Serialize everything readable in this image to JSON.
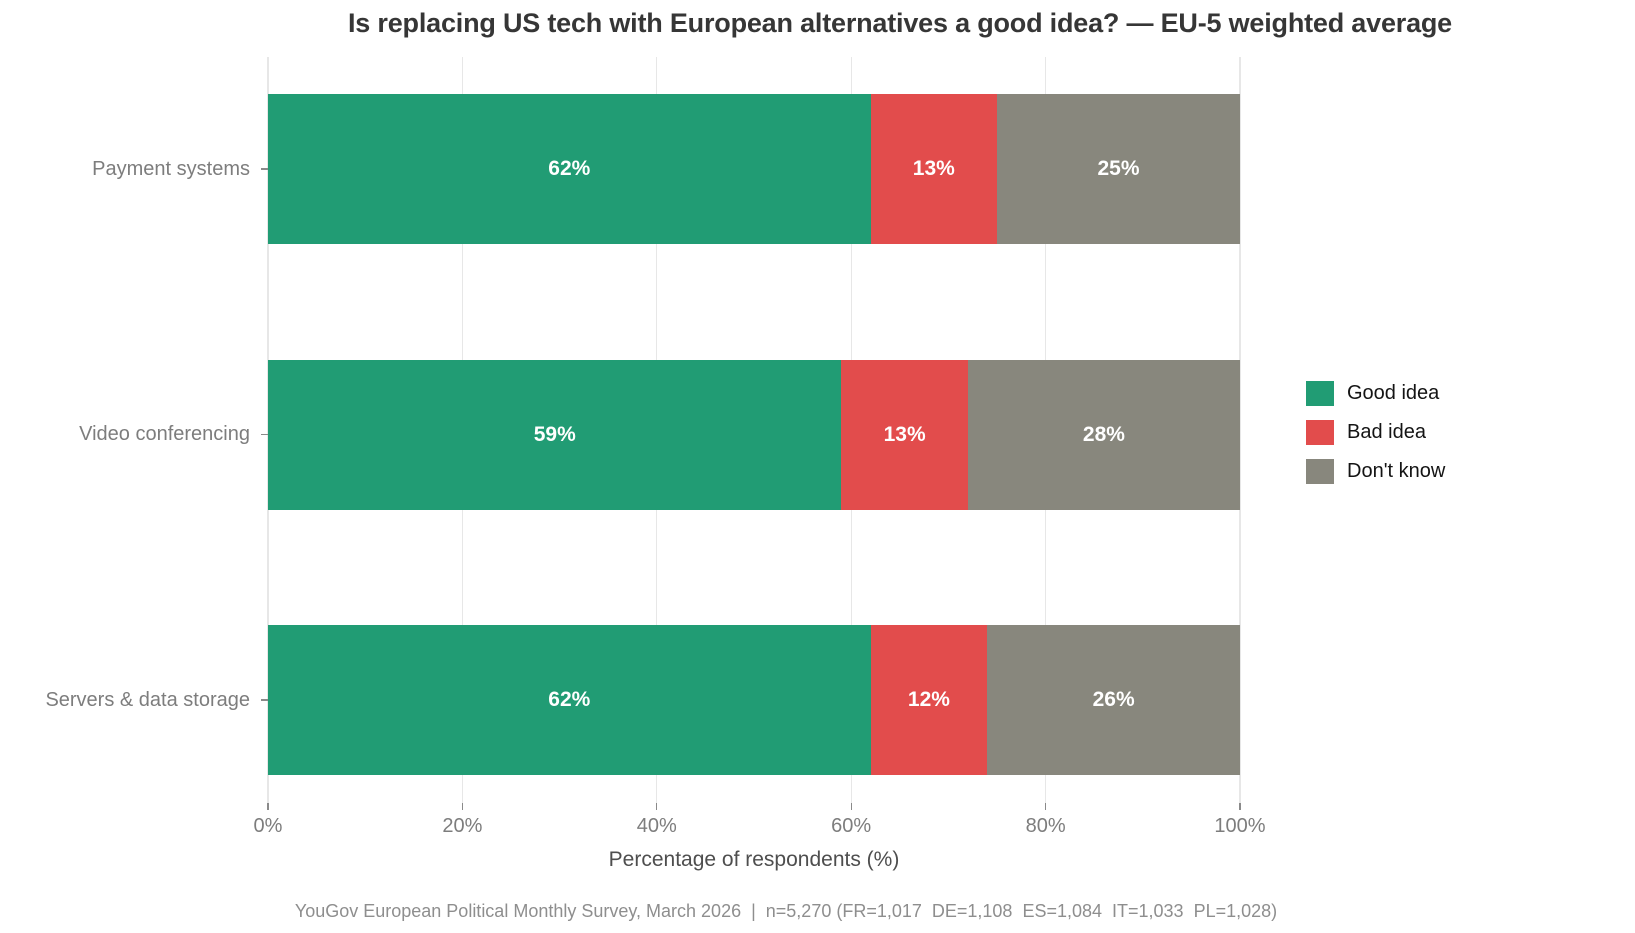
{
  "chart_data": {
    "type": "bar",
    "orientation": "horizontal",
    "stacked": true,
    "title": "Is replacing US tech with European alternatives a good idea? — EU-5 weighted average",
    "xlabel": "Percentage of respondents (%)",
    "ylabel": "",
    "categories": [
      "Payment systems",
      "Video conferencing",
      "Servers & data storage"
    ],
    "series": [
      {
        "name": "Good idea",
        "color": "#219c74",
        "values": [
          62,
          59,
          62
        ]
      },
      {
        "name": "Bad idea",
        "color": "#e24c4c",
        "values": [
          13,
          13,
          12
        ]
      },
      {
        "name": "Don't know",
        "color": "#88877d",
        "values": [
          25,
          28,
          26
        ]
      }
    ],
    "value_suffix": "%",
    "xlim": [
      0,
      100
    ],
    "x_ticks": [
      {
        "value": 0,
        "label": "0%"
      },
      {
        "value": 20,
        "label": "20%"
      },
      {
        "value": 40,
        "label": "40%"
      },
      {
        "value": 60,
        "label": "60%"
      },
      {
        "value": 80,
        "label": "80%"
      },
      {
        "value": 100,
        "label": "100%"
      }
    ],
    "grid": true,
    "legend_position": "right-center",
    "bar_label_color": "#ffffff"
  },
  "colors": {
    "background": "#ffffff",
    "gridline": "#e7e7e7",
    "title": "#363636",
    "tick_label": "#7d7d7d",
    "axis_label": "#4e4e4e",
    "footer": "#8e8e8e",
    "legend_text": "#141414"
  },
  "footer": "YouGov European Political Monthly Survey, March 2026  |  n=5,270 (FR=1,017  DE=1,108  ES=1,084  IT=1,033  PL=1,028)"
}
